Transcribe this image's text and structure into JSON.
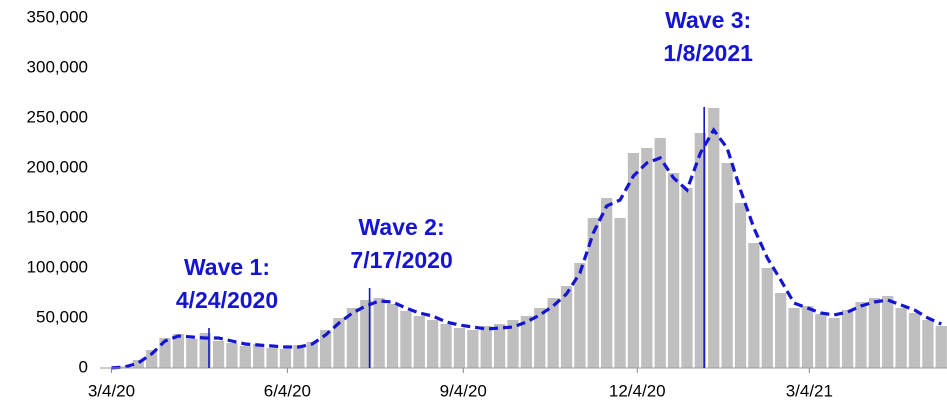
{
  "chart_data": {
    "type": "combo",
    "x": [
      "2020-03-04",
      "2020-03-11",
      "2020-03-18",
      "2020-03-25",
      "2020-04-01",
      "2020-04-08",
      "2020-04-15",
      "2020-04-22",
      "2020-04-29",
      "2020-05-06",
      "2020-05-13",
      "2020-05-20",
      "2020-05-27",
      "2020-06-03",
      "2020-06-10",
      "2020-06-17",
      "2020-06-24",
      "2020-07-01",
      "2020-07-08",
      "2020-07-15",
      "2020-07-22",
      "2020-07-29",
      "2020-08-05",
      "2020-08-12",
      "2020-08-19",
      "2020-08-26",
      "2020-09-02",
      "2020-09-09",
      "2020-09-16",
      "2020-09-23",
      "2020-09-30",
      "2020-10-07",
      "2020-10-14",
      "2020-10-21",
      "2020-10-28",
      "2020-11-04",
      "2020-11-11",
      "2020-11-18",
      "2020-11-25",
      "2020-12-02",
      "2020-12-09",
      "2020-12-16",
      "2020-12-23",
      "2020-12-30",
      "2021-01-06",
      "2021-01-13",
      "2021-01-20",
      "2021-01-27",
      "2021-02-03",
      "2021-02-10",
      "2021-02-17",
      "2021-02-24",
      "2021-03-03",
      "2021-03-10",
      "2021-03-17",
      "2021-03-24",
      "2021-03-31",
      "2021-04-07",
      "2021-04-14",
      "2021-04-21",
      "2021-04-28",
      "2021-05-05",
      "2021-05-12"
    ],
    "series": [
      {
        "type": "bar",
        "color": "#bfbfbf",
        "values": [
          200,
          1500,
          8000,
          18000,
          30000,
          34000,
          29000,
          35000,
          27000,
          25000,
          22000,
          24000,
          20000,
          19000,
          23000,
          26000,
          38000,
          50000,
          60000,
          68000,
          70000,
          64000,
          57000,
          52000,
          48000,
          44000,
          40000,
          38000,
          42000,
          44000,
          48000,
          52000,
          60000,
          70000,
          82000,
          105000,
          150000,
          170000,
          150000,
          215000,
          220000,
          230000,
          195000,
          180000,
          235000,
          260000,
          205000,
          165000,
          125000,
          100000,
          75000,
          60000,
          62000,
          54000,
          50000,
          58000,
          66000,
          70000,
          72000,
          60000,
          55000,
          48000,
          42000
        ]
      },
      {
        "type": "line",
        "color": "#1414d2",
        "values": [
          100,
          1000,
          5000,
          14000,
          27000,
          32000,
          31000,
          30000,
          30000,
          27000,
          24000,
          23000,
          22000,
          21000,
          21000,
          24000,
          33000,
          45000,
          55000,
          62000,
          67000,
          66000,
          60000,
          55000,
          52000,
          46000,
          43000,
          41000,
          39000,
          40000,
          41000,
          46000,
          53000,
          62000,
          74000,
          95000,
          135000,
          162000,
          168000,
          192000,
          205000,
          210000,
          190000,
          178000,
          215000,
          238000,
          220000,
          178000,
          140000,
          110000,
          88000,
          65000,
          60000,
          55000,
          53000,
          56000,
          62000,
          66000,
          68000,
          63000,
          58000,
          50000,
          44000
        ]
      }
    ],
    "xlim": [
      "2020-02-27",
      "2021-05-15"
    ],
    "xticks": [
      {
        "value": "2020-03-04",
        "label": "3/4/20"
      },
      {
        "value": "2020-06-04",
        "label": "6/4/20"
      },
      {
        "value": "2020-09-04",
        "label": "9/4/20"
      },
      {
        "value": "2020-12-04",
        "label": "12/4/20"
      },
      {
        "value": "2021-03-04",
        "label": "3/4/21"
      }
    ],
    "ylim": [
      0,
      350000
    ],
    "yticks": [
      0,
      {
        "value": 50000,
        "label": "50,000"
      },
      {
        "value": 100000,
        "label": "100,000"
      },
      {
        "value": 150000,
        "label": "150,000"
      },
      {
        "value": 200000,
        "label": "200,000"
      },
      {
        "value": 250000,
        "label": "250,000"
      },
      {
        "value": 300000,
        "label": "300,000"
      },
      {
        "value": 350000,
        "label": "350,000"
      }
    ],
    "annotations": [
      {
        "lines": [
          "Wave 1:",
          "4/24/2020"
        ],
        "x": "2020-04-24",
        "y": 40000,
        "color": "#1414d2"
      },
      {
        "lines": [
          "Wave 2:",
          "7/17/2020"
        ],
        "x": "2020-07-17",
        "y": 80000,
        "color": "#1414d2"
      },
      {
        "lines": [
          "Wave 3:",
          "1/8/2021"
        ],
        "x": "2021-01-08",
        "y": 261000,
        "color": "#1414d2"
      }
    ]
  }
}
